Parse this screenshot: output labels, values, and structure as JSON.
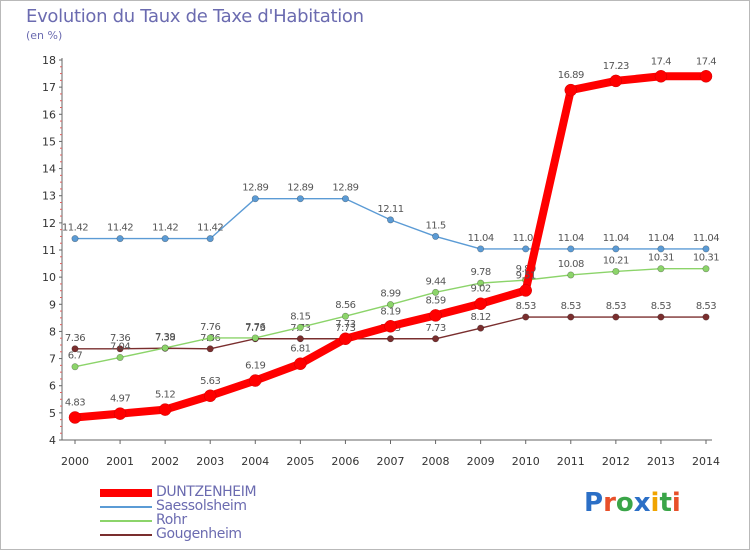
{
  "title": "Evolution du Taux de Taxe d'Habitation",
  "subtitle": "(en %)",
  "logo": {
    "text": "Proxiti",
    "letters": [
      "P",
      "r",
      "o",
      "x",
      "i",
      "t",
      "i"
    ],
    "colors": [
      "#2b6fc6",
      "#e8502a",
      "#3aa548",
      "#2b6fc6",
      "#f0a400",
      "#3aa548",
      "#e8502a"
    ]
  },
  "chart_data": {
    "type": "line",
    "title": "Evolution du Taux de Taxe d'Habitation",
    "ylabel": "(en %)",
    "xlabel": "",
    "x": [
      "2000",
      "2001",
      "2002",
      "2003",
      "2004",
      "2005",
      "2006",
      "2007",
      "2008",
      "2009",
      "2010",
      "2011",
      "2012",
      "2013",
      "2014"
    ],
    "ylim": [
      4,
      18
    ],
    "yticks": [
      "4",
      "5",
      "6",
      "7",
      "8",
      "9",
      "10",
      "11",
      "12",
      "13",
      "14",
      "15",
      "16",
      "17",
      "18"
    ],
    "grid": false,
    "legend_position": "bottom-left",
    "series": [
      {
        "name": "Gougenheim",
        "color": "#7a2e2e",
        "values": [
          7.36,
          7.36,
          7.38,
          7.36,
          7.73,
          7.73,
          7.73,
          7.73,
          7.73,
          8.12,
          8.53,
          8.53,
          8.53,
          8.53,
          8.53
        ],
        "labels": [
          "7.36",
          "7.36",
          "7.38",
          "7.36",
          "7.73",
          "7.73",
          "7.73",
          "7.73",
          "7.73",
          "8.12",
          "8.53",
          "8.53",
          "8.53",
          "8.53",
          "8.53"
        ]
      },
      {
        "name": "Rohr",
        "color": "#8cd46a",
        "values": [
          6.7,
          7.04,
          7.39,
          7.76,
          7.76,
          8.15,
          8.56,
          8.99,
          9.44,
          9.78,
          9.89,
          10.08,
          10.21,
          10.31,
          10.31
        ],
        "labels": [
          "6.7",
          "7.04",
          "7.39",
          "7.76",
          "7.76",
          "8.15",
          "8.56",
          "8.99",
          "9.44",
          "9.78",
          "9.89",
          "10.08",
          "10.21",
          "10.31",
          "10.31"
        ]
      },
      {
        "name": "Saessolsheim",
        "color": "#5b9bd5",
        "values": [
          11.42,
          11.42,
          11.42,
          11.42,
          12.89,
          12.89,
          12.89,
          12.11,
          11.5,
          11.04,
          11.04,
          11.04,
          11.04,
          11.04,
          11.04
        ],
        "labels": [
          "11.42",
          "11.42",
          "11.42",
          "11.42",
          "12.89",
          "12.89",
          "12.89",
          "12.11",
          "11.5",
          "11.04",
          "11.04",
          "11.04",
          "11.04",
          "11.04",
          "11.04"
        ]
      },
      {
        "name": "DUNTZENHEIM",
        "color": "#ff0000",
        "values": [
          4.83,
          4.97,
          5.12,
          5.63,
          6.19,
          6.81,
          7.73,
          8.19,
          8.59,
          9.02,
          9.51,
          16.89,
          17.23,
          17.4,
          17.4
        ],
        "labels": [
          "4.83",
          "4.97",
          "5.12",
          "5.63",
          "6.19",
          "6.81",
          "7.73",
          "8.19",
          "8.59",
          "9.02",
          "9.51",
          "16.89",
          "17.23",
          "17.4",
          "17.4"
        ]
      }
    ],
    "legend": [
      "DUNTZENHEIM",
      "Saessolsheim",
      "Rohr",
      "Gougenheim"
    ]
  }
}
